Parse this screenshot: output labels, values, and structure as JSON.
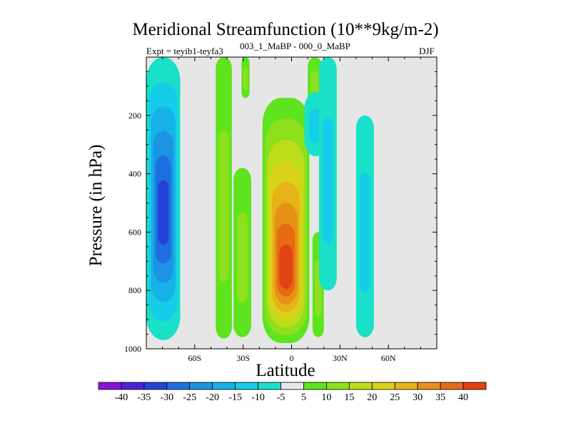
{
  "header": {
    "title": "Meridional Streamfunction (10**9kg/m-2)",
    "experiment": "Expt = teyib1-teyfa3",
    "experiment_range": "003_1_MaBP - 000_0_MaBP",
    "season": "DJF"
  },
  "chart_data": {
    "type": "heatmap",
    "title": "Meridional Streamfunction (10**9kg/m-2)",
    "xlabel": "Latitude",
    "ylabel": "Pressure (in hPa)",
    "xlim": [
      -90,
      90
    ],
    "ylim": [
      1000,
      0
    ],
    "x_ticks": [
      {
        "value": -60,
        "label": "60S"
      },
      {
        "value": -30,
        "label": "30S"
      },
      {
        "value": 0,
        "label": "0"
      },
      {
        "value": 30,
        "label": "30N"
      },
      {
        "value": 60,
        "label": "60N"
      }
    ],
    "y_ticks": [
      {
        "value": 200,
        "label": "200"
      },
      {
        "value": 400,
        "label": "400"
      },
      {
        "value": 600,
        "label": "600"
      },
      {
        "value": 800,
        "label": "800"
      },
      {
        "value": 1000,
        "label": "1000"
      }
    ],
    "background_color": "#e6e6e6",
    "colorbar": {
      "levels": [
        -40,
        -35,
        -30,
        -25,
        -20,
        -15,
        -10,
        -5,
        5,
        10,
        15,
        20,
        25,
        30,
        35,
        40
      ],
      "colors": [
        "#8a14d9",
        "#4f21d6",
        "#2343d6",
        "#1e6fe0",
        "#1c93e3",
        "#16b2e8",
        "#15cde8",
        "#19e0c8",
        "#e6e6e6",
        "#5ee31f",
        "#8ee01c",
        "#bddd1a",
        "#dad219",
        "#e6b318",
        "#e69016",
        "#e66a14",
        "#e34212"
      ]
    },
    "features": [
      {
        "name": "southern-negative-cell",
        "kind": "negative",
        "lat": [
          -90,
          -69
        ],
        "pressure": [
          0,
          970
        ],
        "min_value": -30
      },
      {
        "name": "positive-column-50S",
        "kind": "positive",
        "lat": [
          -47,
          -37
        ],
        "pressure": [
          0,
          965
        ],
        "max_value": 10
      },
      {
        "name": "positive-tongue-30S",
        "kind": "positive",
        "lat": [
          -31,
          -26
        ],
        "pressure": [
          0,
          140
        ],
        "max_value": 10
      },
      {
        "name": "positive-column-30S",
        "kind": "positive",
        "lat": [
          -36,
          -25
        ],
        "pressure": [
          380,
          960
        ],
        "max_value": 10
      },
      {
        "name": "central-positive-cell",
        "kind": "positive",
        "lat": [
          -18,
          11
        ],
        "pressure": [
          140,
          980
        ],
        "max_value": 40
      },
      {
        "name": "positive-column-10N",
        "kind": "positive",
        "lat": [
          10,
          19
        ],
        "pressure": [
          0,
          180
        ],
        "max_value": 10
      },
      {
        "name": "negative-patch-12N",
        "kind": "negative",
        "lat": [
          8,
          22
        ],
        "pressure": [
          120,
          340
        ],
        "min_value": -10
      },
      {
        "name": "positive-column-22N",
        "kind": "positive",
        "lat": [
          13,
          20
        ],
        "pressure": [
          600,
          960
        ],
        "max_value": 10
      },
      {
        "name": "negative-column-20N",
        "kind": "negative",
        "lat": [
          17,
          28
        ],
        "pressure": [
          0,
          800
        ],
        "min_value": -10
      },
      {
        "name": "negative-column-45N",
        "kind": "negative",
        "lat": [
          40,
          51
        ],
        "pressure": [
          200,
          960
        ],
        "min_value": -10
      }
    ]
  }
}
